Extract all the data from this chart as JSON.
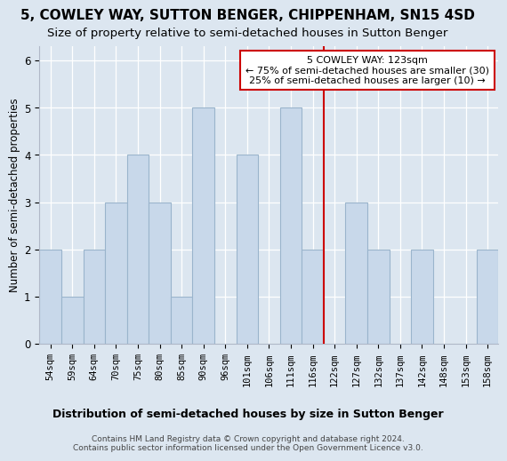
{
  "title": "5, COWLEY WAY, SUTTON BENGER, CHIPPENHAM, SN15 4SD",
  "subtitle": "Size of property relative to semi-detached houses in Sutton Benger",
  "xlabel": "Distribution of semi-detached houses by size in Sutton Benger",
  "ylabel": "Number of semi-detached properties",
  "categories": [
    "54sqm",
    "59sqm",
    "64sqm",
    "70sqm",
    "75sqm",
    "80sqm",
    "85sqm",
    "90sqm",
    "96sqm",
    "101sqm",
    "106sqm",
    "111sqm",
    "116sqm",
    "122sqm",
    "127sqm",
    "132sqm",
    "137sqm",
    "142sqm",
    "148sqm",
    "153sqm",
    "158sqm"
  ],
  "bar_heights": [
    2,
    1,
    2,
    3,
    4,
    3,
    1,
    5,
    0,
    4,
    0,
    5,
    2,
    0,
    3,
    2,
    0,
    2,
    0,
    0,
    2
  ],
  "bar_color": "#c8d8ea",
  "bar_edge_color": "#9ab4cc",
  "property_line_x": 12.5,
  "property_line_color": "#cc0000",
  "annotation_text": "5 COWLEY WAY: 123sqm\n← 75% of semi-detached houses are smaller (30)\n25% of semi-detached houses are larger (10) →",
  "annotation_box_color": "#cc0000",
  "ylim": [
    0,
    6.3
  ],
  "yticks": [
    0,
    1,
    2,
    3,
    4,
    5,
    6
  ],
  "background_color": "#dce6f0",
  "plot_bg_color": "#dce6f0",
  "footer_text": "Contains HM Land Registry data © Crown copyright and database right 2024.\nContains public sector information licensed under the Open Government Licence v3.0.",
  "title_fontsize": 11,
  "subtitle_fontsize": 9.5,
  "xlabel_fontsize": 9,
  "ylabel_fontsize": 8.5,
  "tick_fontsize": 7.5,
  "annot_fontsize": 8,
  "footer_fontsize": 6.5,
  "grid_color": "#ffffff"
}
